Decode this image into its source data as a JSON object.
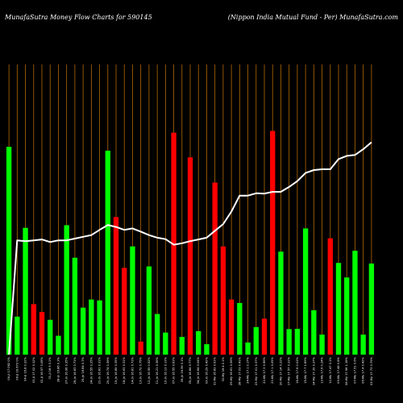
{
  "header": {
    "left": "MunafaSutra  Money Flow  Charts for 590145",
    "right": "(Nippon  India  Mutual Fund -  Per) MunafaSutra.com"
  },
  "colors": {
    "background": "#000000",
    "up": "#00ff00",
    "down": "#ff0000",
    "grid": "#b36a00",
    "line": "#ffffff",
    "text": "#ffffff"
  },
  "chart_data": {
    "type": "bar",
    "title": "",
    "xlabel": "",
    "ylabel": "",
    "ylim": [
      0,
      100
    ],
    "grid": true,
    "categories": [
      "06-Jl 17.082 0%",
      "06-Jl 16.673 0%",
      "04-Jl 16.8 0.22%",
      "03-Jl 17.02 0.12%",
      "02-Jl 16.97 0.08%",
      "01-Jl 16.9 0.2%",
      "28-Jn 16.86 0.3%",
      "27-Jn 16.96 0.35%",
      "26-Jn 16.83 0.71%",
      "25-Jn 16.84 0.3%",
      "24-Jn 16.55 0.25%",
      "21-Jn 16.81 0.31%",
      "20-Jn 16.74 0.36%",
      "19-Jn 16.89 0.35%",
      "18-Jn 16.63 0.31%",
      "14-Jn 16.81 0.73%",
      "13-Jn 16.72 0.75%",
      "12-Jn 16.55 0.52%",
      "11-Jn 16.21 0.36%",
      "10-Jn 16.13 0.13%",
      "07-Jn 16.55 0.63%",
      "06-Jn 16.96 0.1%",
      "05-Jn 16.84 0.77%",
      "04-Jn 16.64 0.04%",
      "03-Jn 16.29 0.42%",
      "31-My 16.83 0.91%",
      "30-My 16.4 0.1%",
      "29-My 16.61 0.26%",
      "28-My 17.03 0.41%",
      "24-My 17.1 0.17%",
      "23-My 17.01 0.37%",
      "22-My 17.3 0.56%",
      "21-My 17.1 0.25%",
      "20-My 17.14 0.22%",
      "17-My 17.57 0.31%",
      "16-My 17.6 0.02%",
      "15-My 17.7 1.69%",
      "14-My 17.39 0.37%",
      "13-My 17.6 0.24%",
      "10-My 17.47 0.2%",
      "09-My 17.48 0.8%",
      "08-My 17.56 1.18%",
      "07-My 17.51 0.6%",
      "06-My 17.4 0.42%",
      "03-My 17.73 0.79%"
    ],
    "colors": [
      "green",
      "green",
      "green",
      "red",
      "red",
      "green",
      "green",
      "green",
      "green",
      "green",
      "green",
      "green",
      "green",
      "red",
      "red",
      "green",
      "red",
      "green",
      "green",
      "green",
      "red",
      "green",
      "red",
      "green",
      "green",
      "red",
      "red",
      "red",
      "green",
      "green",
      "green",
      "red",
      "red",
      "green",
      "green",
      "green",
      "green",
      "green",
      "green",
      "red",
      "green",
      "green",
      "green",
      "green",
      "green"
    ],
    "values": [
      71.6,
      13.1,
      43.7,
      17.4,
      14.7,
      12.0,
      6.5,
      44.6,
      33.4,
      16.2,
      19.0,
      18.7,
      70.3,
      47.4,
      29.9,
      37.3,
      4.5,
      30.4,
      14.0,
      7.6,
      76.5,
      6.1,
      68.0,
      8.1,
      3.6,
      59.3,
      37.3,
      19.0,
      17.8,
      4.2,
      9.5,
      12.4,
      77.1,
      35.5,
      8.8,
      8.9,
      43.5,
      15.3,
      6.9,
      40.1,
      31.6,
      26.6,
      35.8,
      6.9,
      31.4
    ],
    "series": [
      {
        "values": [
          0.0,
          39.4,
          39.1,
          39.4,
          39.7,
          38.8,
          39.4,
          39.4,
          40.0,
          40.6,
          41.2,
          43.0,
          44.7,
          44.0,
          43.0,
          43.5,
          42.4,
          41.2,
          40.3,
          39.8,
          37.9,
          38.4,
          39.1,
          39.7,
          40.3,
          42.7,
          45.0,
          49.3,
          54.8,
          54.8,
          55.6,
          55.5,
          56.1,
          56.1,
          57.8,
          59.8,
          62.6,
          63.6,
          63.9,
          63.9,
          67.4,
          68.5,
          68.8,
          70.8,
          73.2
        ]
      }
    ]
  }
}
